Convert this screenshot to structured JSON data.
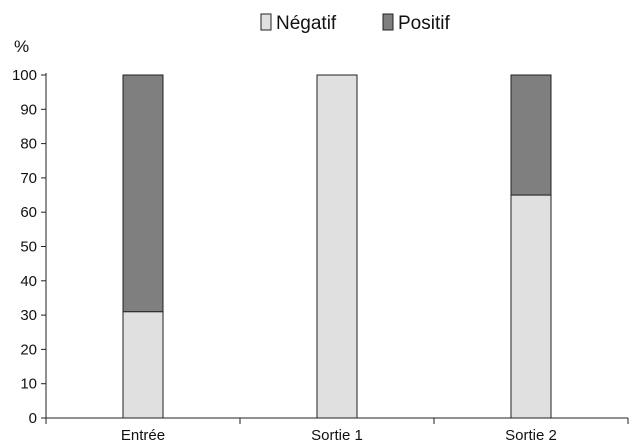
{
  "chart_data": {
    "type": "bar",
    "stacked": true,
    "categories": [
      "Entrée",
      "Sortie 1",
      "Sortie 2"
    ],
    "series": [
      {
        "name": "Négatif",
        "values": [
          31,
          100,
          65
        ],
        "color": "#e0e0e0"
      },
      {
        "name": "Positif",
        "values": [
          69,
          0,
          35
        ],
        "color": "#7f7f7f"
      }
    ],
    "ylabel": "%",
    "ylim": [
      0,
      100
    ],
    "yticks": [
      0,
      10,
      20,
      30,
      40,
      50,
      60,
      70,
      80,
      90,
      100
    ],
    "grid": false,
    "legend_position": "top"
  }
}
